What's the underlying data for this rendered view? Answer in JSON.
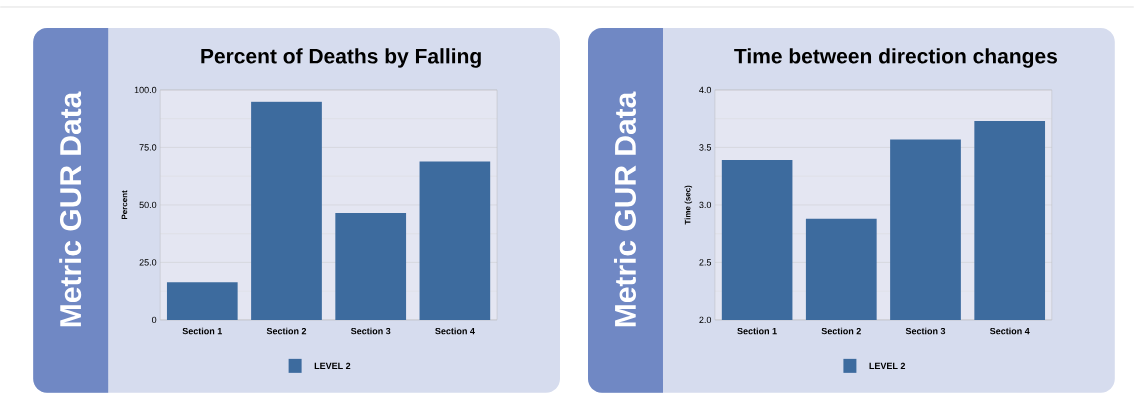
{
  "chart_data": [
    {
      "type": "bar",
      "title": "Percent of Deaths by Falling",
      "ylabel": "Percent",
      "annotations": [
        "Metric GUR Data"
      ],
      "categories": [
        "Section 1",
        "Section 2",
        "Section 3",
        "Section 4"
      ],
      "series": [
        {
          "name": "LEVEL 2",
          "color": "#3d6b9e",
          "values": [
            16.4,
            94.9,
            46.5,
            68.9
          ]
        }
      ],
      "ylim": [
        0,
        100
      ],
      "yticks": [
        {
          "value": 0,
          "label": "0"
        },
        {
          "value": 25,
          "label": "25.0"
        },
        {
          "value": 50,
          "label": "50.0"
        },
        {
          "value": 75,
          "label": "75.0"
        },
        {
          "value": 100,
          "label": "100.0"
        }
      ],
      "grid": "y",
      "legend": "bottom"
    },
    {
      "type": "bar",
      "title": "Time between direction changes",
      "ylabel": "Time (sec)",
      "annotations": [
        "Metric GUR Data"
      ],
      "categories": [
        "Section 1",
        "Section 2",
        "Section 3",
        "Section 4"
      ],
      "series": [
        {
          "name": "LEVEL 2",
          "color": "#3d6b9e",
          "values": [
            3.39,
            2.88,
            3.57,
            3.73
          ]
        }
      ],
      "ylim": [
        2,
        4
      ],
      "yticks": [
        {
          "value": 2,
          "label": "2.0"
        },
        {
          "value": 2.5,
          "label": "2.5"
        },
        {
          "value": 3,
          "label": "3.0"
        },
        {
          "value": 3.5,
          "label": "3.5"
        },
        {
          "value": 4,
          "label": "4.0"
        }
      ],
      "grid": "y",
      "legend": "bottom"
    }
  ]
}
